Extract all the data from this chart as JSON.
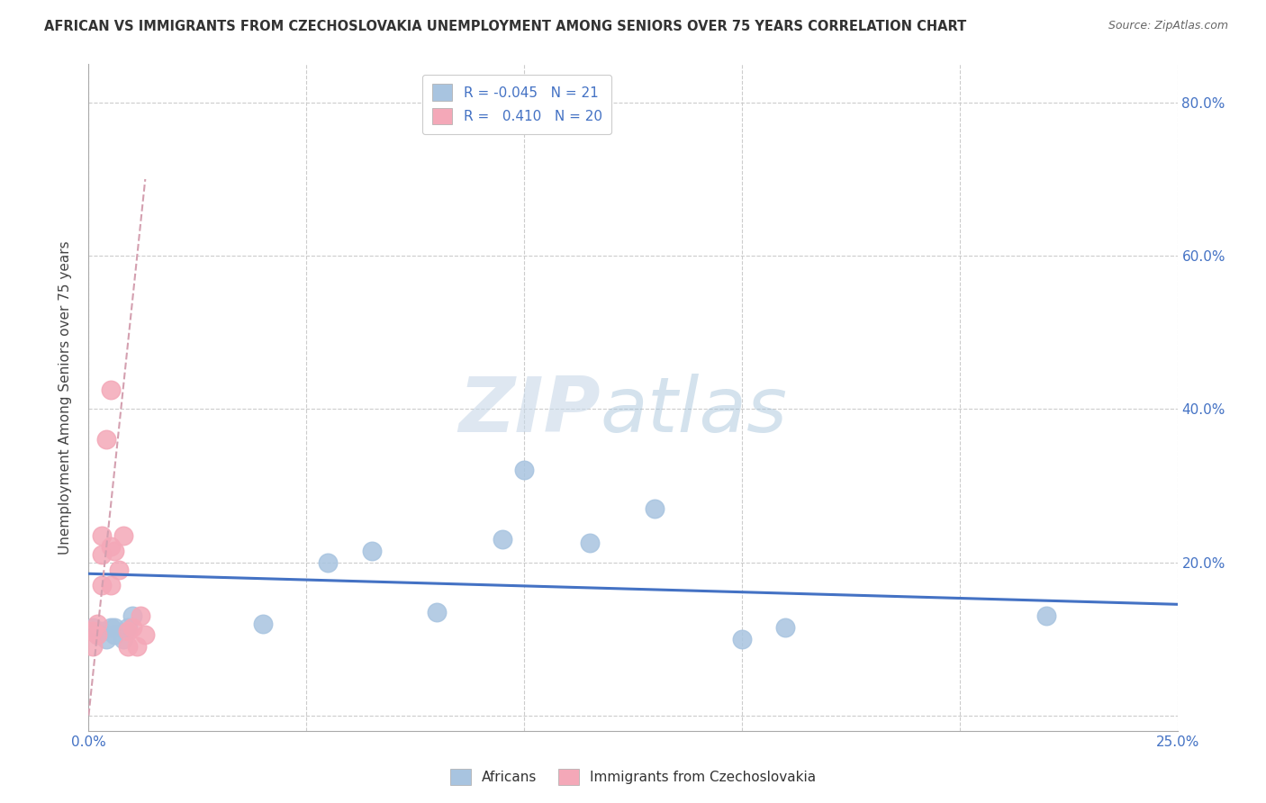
{
  "title": "AFRICAN VS IMMIGRANTS FROM CZECHOSLOVAKIA UNEMPLOYMENT AMONG SENIORS OVER 75 YEARS CORRELATION CHART",
  "source": "Source: ZipAtlas.com",
  "ylabel": "Unemployment Among Seniors over 75 years",
  "xlim": [
    0.0,
    0.25
  ],
  "ylim": [
    -0.02,
    0.85
  ],
  "background_color": "#ffffff",
  "watermark_zip": "ZIP",
  "watermark_atlas": "atlas",
  "legend_R_african": "-0.045",
  "legend_N_african": "21",
  "legend_R_czech": "0.410",
  "legend_N_czech": "20",
  "african_color": "#a8c4e0",
  "czech_color": "#f4a8b8",
  "african_line_color": "#4472c4",
  "czech_line_color": "#d4a0b0",
  "grid_color": "#cccccc",
  "african_x": [
    0.001,
    0.002,
    0.003,
    0.004,
    0.005,
    0.006,
    0.006,
    0.008,
    0.009,
    0.01,
    0.04,
    0.055,
    0.065,
    0.08,
    0.095,
    0.1,
    0.115,
    0.13,
    0.15,
    0.16,
    0.22
  ],
  "african_y": [
    0.115,
    0.105,
    0.11,
    0.1,
    0.115,
    0.115,
    0.105,
    0.1,
    0.115,
    0.13,
    0.12,
    0.2,
    0.215,
    0.135,
    0.23,
    0.32,
    0.225,
    0.27,
    0.1,
    0.115,
    0.13
  ],
  "czech_x": [
    0.001,
    0.001,
    0.002,
    0.002,
    0.003,
    0.003,
    0.003,
    0.004,
    0.005,
    0.005,
    0.005,
    0.006,
    0.007,
    0.008,
    0.009,
    0.009,
    0.01,
    0.011,
    0.012,
    0.013
  ],
  "czech_y": [
    0.11,
    0.09,
    0.12,
    0.105,
    0.235,
    0.21,
    0.17,
    0.36,
    0.425,
    0.22,
    0.17,
    0.215,
    0.19,
    0.235,
    0.11,
    0.09,
    0.115,
    0.09,
    0.13,
    0.105
  ],
  "african_trend_x0": 0.0,
  "african_trend_y0": 0.185,
  "african_trend_x1": 0.25,
  "african_trend_y1": 0.145,
  "czech_trend_x0": 0.0,
  "czech_trend_y0": 0.0,
  "czech_trend_x1": 0.013,
  "czech_trend_y1": 0.7
}
